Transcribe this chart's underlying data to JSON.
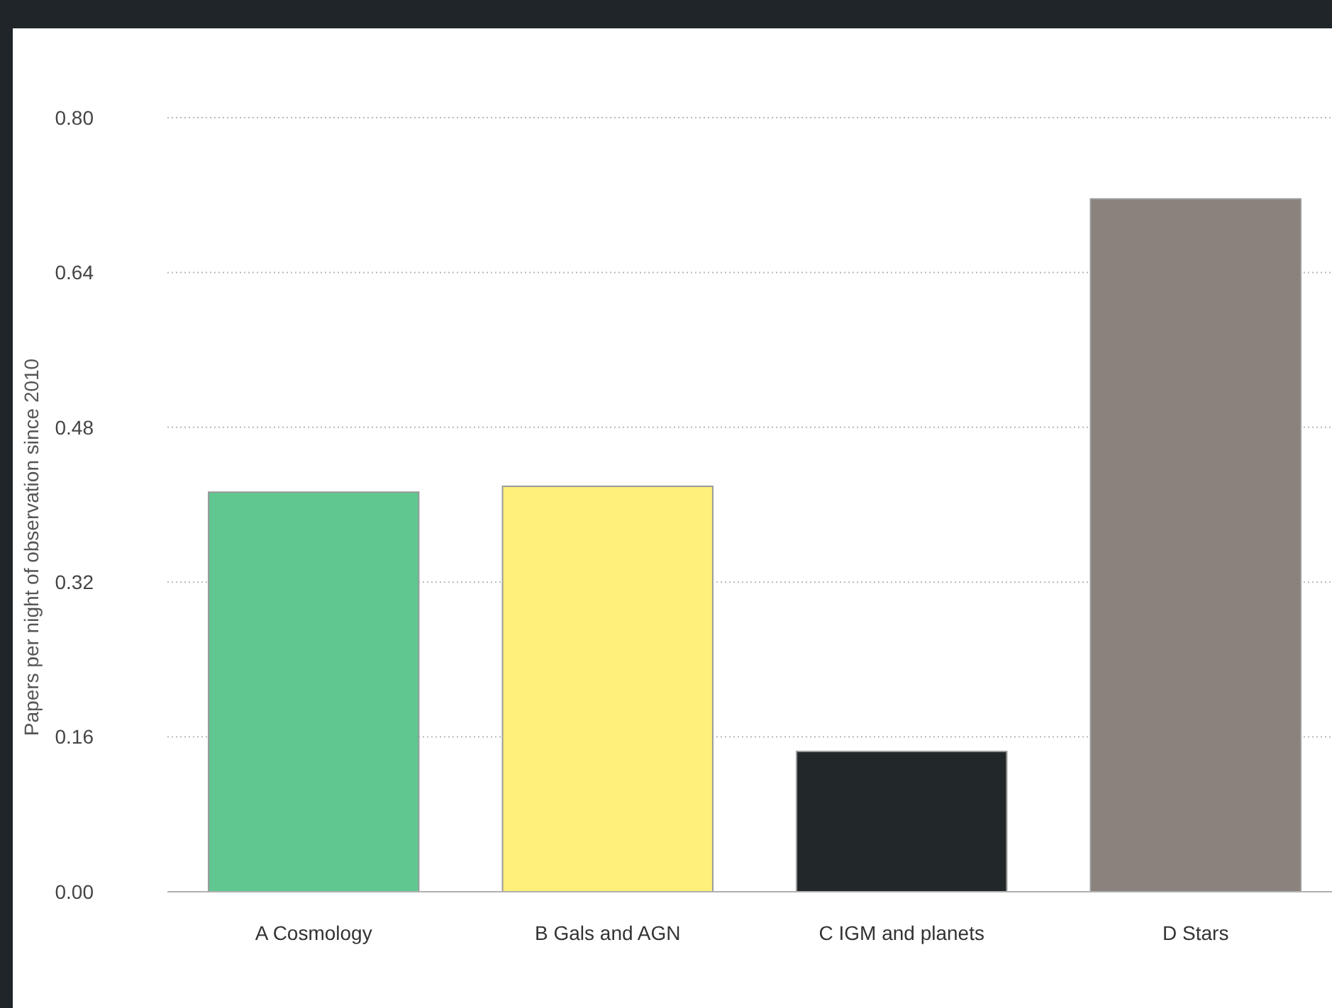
{
  "chart_data": {
    "type": "bar",
    "ylabel": "Papers per night of observation since 2010",
    "categories": [
      "A Cosmology",
      "B Gals and AGN",
      "C IGM and planets",
      "D Stars"
    ],
    "values": [
      0.413,
      0.419,
      0.145,
      0.716
    ],
    "colors": [
      "#5fc78f",
      "#fef07a",
      "#222829",
      "#8a827d"
    ],
    "ylim": [
      0,
      0.8
    ],
    "yticks": [
      {
        "value": 0,
        "label": "0.00"
      },
      {
        "value": 0.16,
        "label": "0.16"
      },
      {
        "value": 0.32,
        "label": "0.32"
      },
      {
        "value": 0.48,
        "label": "0.48"
      },
      {
        "value": 0.64,
        "label": "0.64"
      },
      {
        "value": 0.8,
        "label": "0.80"
      }
    ],
    "grid": "y"
  }
}
